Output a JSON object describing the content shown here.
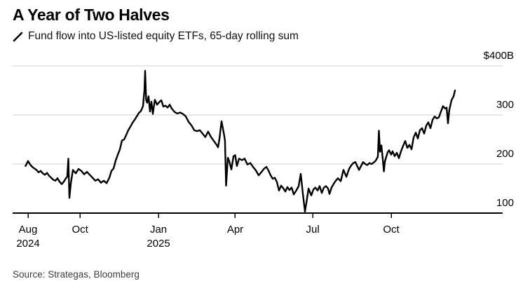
{
  "header": {
    "title": "A Year of Two Halves",
    "legend_label": "Fund flow into US-listed equity ETFs, 65-day rolling sum"
  },
  "footer": {
    "source": "Source: Strategas, Bloomberg"
  },
  "colors": {
    "line": "#000000",
    "grid": "#d2d2d2",
    "axis": "#000000",
    "text": "#000000",
    "source_text": "#3d3d3d",
    "background": "#ffffff"
  },
  "chart_data": {
    "type": "line",
    "title": "A Year of Two Halves",
    "series_label": "Fund flow into US-listed equity ETFs, 65-day rolling sum",
    "unit": "billion USD",
    "x_unit": "days since 2024-08-01",
    "xlabel": "",
    "ylabel": "",
    "ylim": [
      100,
      400
    ],
    "grid": "horizontal",
    "legend_position": "top-left",
    "x_ticks": [
      {
        "day": 0,
        "label": "Aug",
        "sublabel": "2024"
      },
      {
        "day": 61,
        "label": "Oct",
        "sublabel": ""
      },
      {
        "day": 153,
        "label": "Jan",
        "sublabel": "2025"
      },
      {
        "day": 243,
        "label": "Apr",
        "sublabel": ""
      },
      {
        "day": 334,
        "label": "Jul",
        "sublabel": ""
      },
      {
        "day": 426,
        "label": "Oct",
        "sublabel": ""
      }
    ],
    "y_ticks": [
      {
        "value": 400,
        "label": "$400B"
      },
      {
        "value": 300,
        "label": "300"
      },
      {
        "value": 200,
        "label": "200"
      },
      {
        "value": 100,
        "label": "100"
      }
    ],
    "series": [
      {
        "name": "Fund flow into US-listed equity ETFs, 65-day rolling sum",
        "points": [
          [
            -3,
            196
          ],
          [
            0,
            206
          ],
          [
            2.5,
            199
          ],
          [
            5,
            194
          ],
          [
            7.4,
            191
          ],
          [
            9.9,
            188
          ],
          [
            12.3,
            183
          ],
          [
            14.8,
            186
          ],
          [
            17.3,
            181
          ],
          [
            19.7,
            178
          ],
          [
            22.2,
            182
          ],
          [
            24.7,
            176
          ],
          [
            27.1,
            172
          ],
          [
            29.6,
            168
          ],
          [
            32.1,
            166
          ],
          [
            34.5,
            171
          ],
          [
            37,
            164
          ],
          [
            39.5,
            159
          ],
          [
            41.9,
            164
          ],
          [
            44.4,
            171
          ],
          [
            46,
            174
          ],
          [
            47.3,
            211
          ],
          [
            48.5,
            131
          ],
          [
            50.2,
            160
          ],
          [
            52.6,
            188
          ],
          [
            55.9,
            181
          ],
          [
            59.2,
            190
          ],
          [
            62.5,
            186
          ],
          [
            65.8,
            179
          ],
          [
            69.1,
            184
          ],
          [
            72.4,
            178
          ],
          [
            75.7,
            172
          ],
          [
            78.9,
            166
          ],
          [
            82.2,
            169
          ],
          [
            85.5,
            162
          ],
          [
            88.8,
            166
          ],
          [
            92.1,
            161
          ],
          [
            95.4,
            172
          ],
          [
            97.9,
            186
          ],
          [
            100.3,
            191
          ],
          [
            102.8,
            207
          ],
          [
            105.3,
            219
          ],
          [
            107.7,
            230
          ],
          [
            110.2,
            248
          ],
          [
            112.7,
            250
          ],
          [
            115.1,
            259
          ],
          [
            117.6,
            269
          ],
          [
            120.1,
            276
          ],
          [
            122.5,
            284
          ],
          [
            125,
            290
          ],
          [
            127.5,
            297
          ],
          [
            129.9,
            304
          ],
          [
            132.4,
            308
          ],
          [
            134.9,
            318
          ],
          [
            136.5,
            350
          ],
          [
            137.3,
            390
          ],
          [
            138.6,
            330
          ],
          [
            139.8,
            325
          ],
          [
            141.4,
            338
          ],
          [
            143.1,
            307
          ],
          [
            144.7,
            327
          ],
          [
            146.4,
            302
          ],
          [
            148.8,
            331
          ],
          [
            151.3,
            321
          ],
          [
            153.8,
            326
          ],
          [
            156.3,
            330
          ],
          [
            158.7,
            317
          ],
          [
            161.2,
            319
          ],
          [
            163.7,
            315
          ],
          [
            166.1,
            321
          ],
          [
            168.6,
            313
          ],
          [
            171.9,
            306
          ],
          [
            175.2,
            303
          ],
          [
            178.5,
            305
          ],
          [
            181.7,
            302
          ],
          [
            185,
            297
          ],
          [
            188.3,
            286
          ],
          [
            191.6,
            279
          ],
          [
            194.9,
            269
          ],
          [
            198.2,
            267
          ],
          [
            201.5,
            269
          ],
          [
            204.8,
            262
          ],
          [
            208,
            255
          ],
          [
            211.3,
            266
          ],
          [
            214.6,
            255
          ],
          [
            217.9,
            247
          ],
          [
            221.2,
            239
          ],
          [
            222.9,
            234
          ],
          [
            224.5,
            251
          ],
          [
            227,
            287
          ],
          [
            228.6,
            272
          ],
          [
            229.9,
            260
          ],
          [
            231,
            248
          ],
          [
            232.3,
            156
          ],
          [
            234.4,
            213
          ],
          [
            236,
            206
          ],
          [
            238.5,
            189
          ],
          [
            241,
            216
          ],
          [
            243,
            218
          ],
          [
            245,
            196
          ],
          [
            247.5,
            211
          ],
          [
            251,
            208
          ],
          [
            254,
            211
          ],
          [
            257.4,
            199
          ],
          [
            260.7,
            202
          ],
          [
            264,
            194
          ],
          [
            267.3,
            187
          ],
          [
            270.6,
            177
          ],
          [
            273.9,
            184
          ],
          [
            277.1,
            191
          ],
          [
            279.6,
            194
          ],
          [
            282,
            187
          ],
          [
            284.5,
            177
          ],
          [
            287,
            170
          ],
          [
            289.5,
            172
          ],
          [
            292,
            163
          ],
          [
            294.4,
            146
          ],
          [
            296.9,
            156
          ],
          [
            299.3,
            151
          ],
          [
            301.8,
            144
          ],
          [
            304.3,
            153
          ],
          [
            306.7,
            147
          ],
          [
            309.2,
            152
          ],
          [
            311.7,
            138
          ],
          [
            315,
            147
          ],
          [
            317.4,
            155
          ],
          [
            319.9,
            180
          ],
          [
            322.4,
            140
          ],
          [
            324.8,
            103
          ],
          [
            327.3,
            130
          ],
          [
            329,
            150
          ],
          [
            332.2,
            136
          ],
          [
            334.7,
            148
          ],
          [
            337,
            152
          ],
          [
            339.6,
            146
          ],
          [
            342,
            155
          ],
          [
            344.6,
            141
          ],
          [
            347,
            152
          ],
          [
            349.5,
            155
          ],
          [
            352,
            150
          ],
          [
            353.6,
            139
          ],
          [
            356,
            152
          ],
          [
            358.6,
            160
          ],
          [
            361,
            166
          ],
          [
            363.5,
            171
          ],
          [
            366.8,
            165
          ],
          [
            370,
            188
          ],
          [
            373.4,
            174
          ],
          [
            376.6,
            190
          ],
          [
            379,
            197
          ],
          [
            381.6,
            202
          ],
          [
            384,
            204
          ],
          [
            388.2,
            188
          ],
          [
            390.6,
            196
          ],
          [
            393.1,
            204
          ],
          [
            395.6,
            200
          ],
          [
            398,
            198
          ],
          [
            400.5,
            202
          ],
          [
            403,
            200
          ],
          [
            405.4,
            203
          ],
          [
            407.9,
            207
          ],
          [
            410.4,
            215
          ],
          [
            411.6,
            268
          ],
          [
            412.8,
            225
          ],
          [
            414.5,
            238
          ],
          [
            416.1,
            210
          ],
          [
            417.4,
            185
          ],
          [
            418.6,
            205
          ],
          [
            420.2,
            215
          ],
          [
            421.9,
            224
          ],
          [
            423.5,
            228
          ],
          [
            426,
            219
          ],
          [
            427.6,
            226
          ],
          [
            430,
            216
          ],
          [
            432.6,
            223
          ],
          [
            435,
            212
          ],
          [
            437.5,
            226
          ],
          [
            440,
            237
          ],
          [
            442.4,
            247
          ],
          [
            444.9,
            233
          ],
          [
            447.4,
            239
          ],
          [
            449.8,
            230
          ],
          [
            452.3,
            254
          ],
          [
            454.8,
            264
          ],
          [
            457.2,
            252
          ],
          [
            459.7,
            269
          ],
          [
            462.2,
            273
          ],
          [
            464.6,
            262
          ],
          [
            467.1,
            278
          ],
          [
            469.6,
            285
          ],
          [
            472,
            273
          ],
          [
            474.5,
            290
          ],
          [
            477,
            297
          ],
          [
            479.4,
            293
          ],
          [
            481.9,
            295
          ],
          [
            484.4,
            307
          ],
          [
            486.8,
            318
          ],
          [
            489.3,
            313
          ],
          [
            491,
            315
          ],
          [
            492.6,
            283
          ],
          [
            494.2,
            310
          ],
          [
            496.7,
            330
          ],
          [
            499.2,
            338
          ],
          [
            500.8,
            350
          ]
        ]
      }
    ]
  }
}
